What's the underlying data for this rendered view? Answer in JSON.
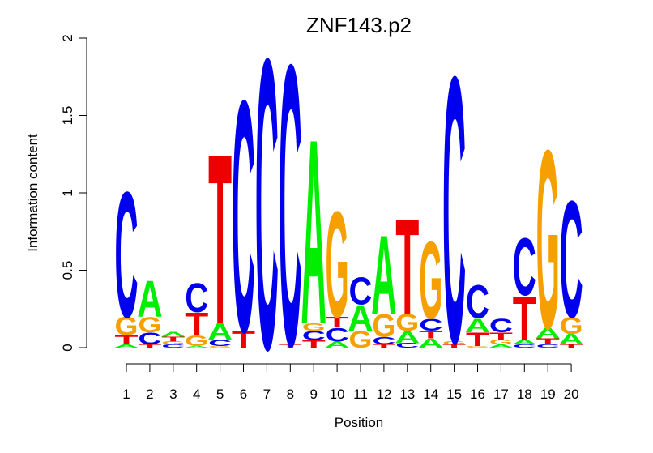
{
  "chart_data": {
    "type": "sequence-logo",
    "title": "ZNF143.p2",
    "xlabel": "Position",
    "ylabel": "Information content",
    "ylim": [
      0,
      2
    ],
    "yticks": [
      "0",
      "0.5",
      "1",
      "1.5",
      "2"
    ],
    "ytick_values": [
      0,
      0.5,
      1,
      1.5,
      2
    ],
    "positions": [
      "1",
      "2",
      "3",
      "4",
      "5",
      "6",
      "7",
      "8",
      "9",
      "10",
      "11",
      "12",
      "13",
      "14",
      "15",
      "16",
      "17",
      "18",
      "19",
      "20"
    ],
    "colors": {
      "A": "#00ee00",
      "C": "#0000ee",
      "G": "#f5a000",
      "T": "#ee0000"
    },
    "stacks": [
      [
        [
          "A",
          0.02
        ],
        [
          "T",
          0.06
        ],
        [
          "G",
          0.12
        ],
        [
          "C",
          0.83
        ]
      ],
      [
        [
          "T",
          0.02
        ],
        [
          "C",
          0.08
        ],
        [
          "G",
          0.1
        ],
        [
          "A",
          0.24
        ]
      ],
      [
        [
          "C",
          0.02
        ],
        [
          "G",
          0.02
        ],
        [
          "T",
          0.03
        ],
        [
          "A",
          0.03
        ]
      ],
      [
        [
          "A",
          0.01
        ],
        [
          "G",
          0.07
        ],
        [
          "T",
          0.15
        ],
        [
          "C",
          0.19
        ]
      ],
      [
        [
          "G",
          0.01
        ],
        [
          "C",
          0.04
        ],
        [
          "A",
          0.11
        ],
        [
          "T",
          1.12
        ]
      ],
      [
        [
          "T",
          0.11
        ],
        [
          "C",
          1.53
        ]
      ],
      [
        [
          "C",
          1.92
        ]
      ],
      [
        [
          "T",
          0.02
        ],
        [
          "C",
          1.86
        ]
      ],
      [
        [
          "T",
          0.05
        ],
        [
          "C",
          0.06
        ],
        [
          "G",
          0.05
        ],
        [
          "A",
          1.22
        ]
      ],
      [
        [
          "A",
          0.04
        ],
        [
          "C",
          0.09
        ],
        [
          "T",
          0.07
        ],
        [
          "G",
          0.7
        ]
      ],
      [
        [
          "G",
          0.11
        ],
        [
          "A",
          0.17
        ],
        [
          "C",
          0.18
        ]
      ],
      [
        [
          "T",
          0.02
        ],
        [
          "C",
          0.05
        ],
        [
          "G",
          0.15
        ],
        [
          "A",
          0.52
        ]
      ],
      [
        [
          "C",
          0.03
        ],
        [
          "A",
          0.08
        ],
        [
          "G",
          0.11
        ],
        [
          "T",
          0.63
        ]
      ],
      [
        [
          "A",
          0.06
        ],
        [
          "T",
          0.05
        ],
        [
          "C",
          0.08
        ],
        [
          "G",
          0.51
        ]
      ],
      [
        [
          "T",
          0.02
        ],
        [
          "G",
          0.02
        ],
        [
          "C",
          1.76
        ]
      ],
      [
        [
          "G",
          0.01
        ],
        [
          "T",
          0.09
        ],
        [
          "A",
          0.09
        ],
        [
          "C",
          0.22
        ]
      ],
      [
        [
          "A",
          0.02
        ],
        [
          "G",
          0.03
        ],
        [
          "T",
          0.05
        ],
        [
          "C",
          0.09
        ]
      ],
      [
        [
          "C",
          0.02
        ],
        [
          "A",
          0.03
        ],
        [
          "T",
          0.29
        ],
        [
          "C",
          0.38
        ]
      ],
      [
        [
          "C",
          0.02
        ],
        [
          "T",
          0.04
        ],
        [
          "A",
          0.07
        ],
        [
          "G",
          1.18
        ]
      ],
      [
        [
          "T",
          0.02
        ],
        [
          "A",
          0.07
        ],
        [
          "G",
          0.11
        ],
        [
          "C",
          0.77
        ]
      ]
    ]
  }
}
